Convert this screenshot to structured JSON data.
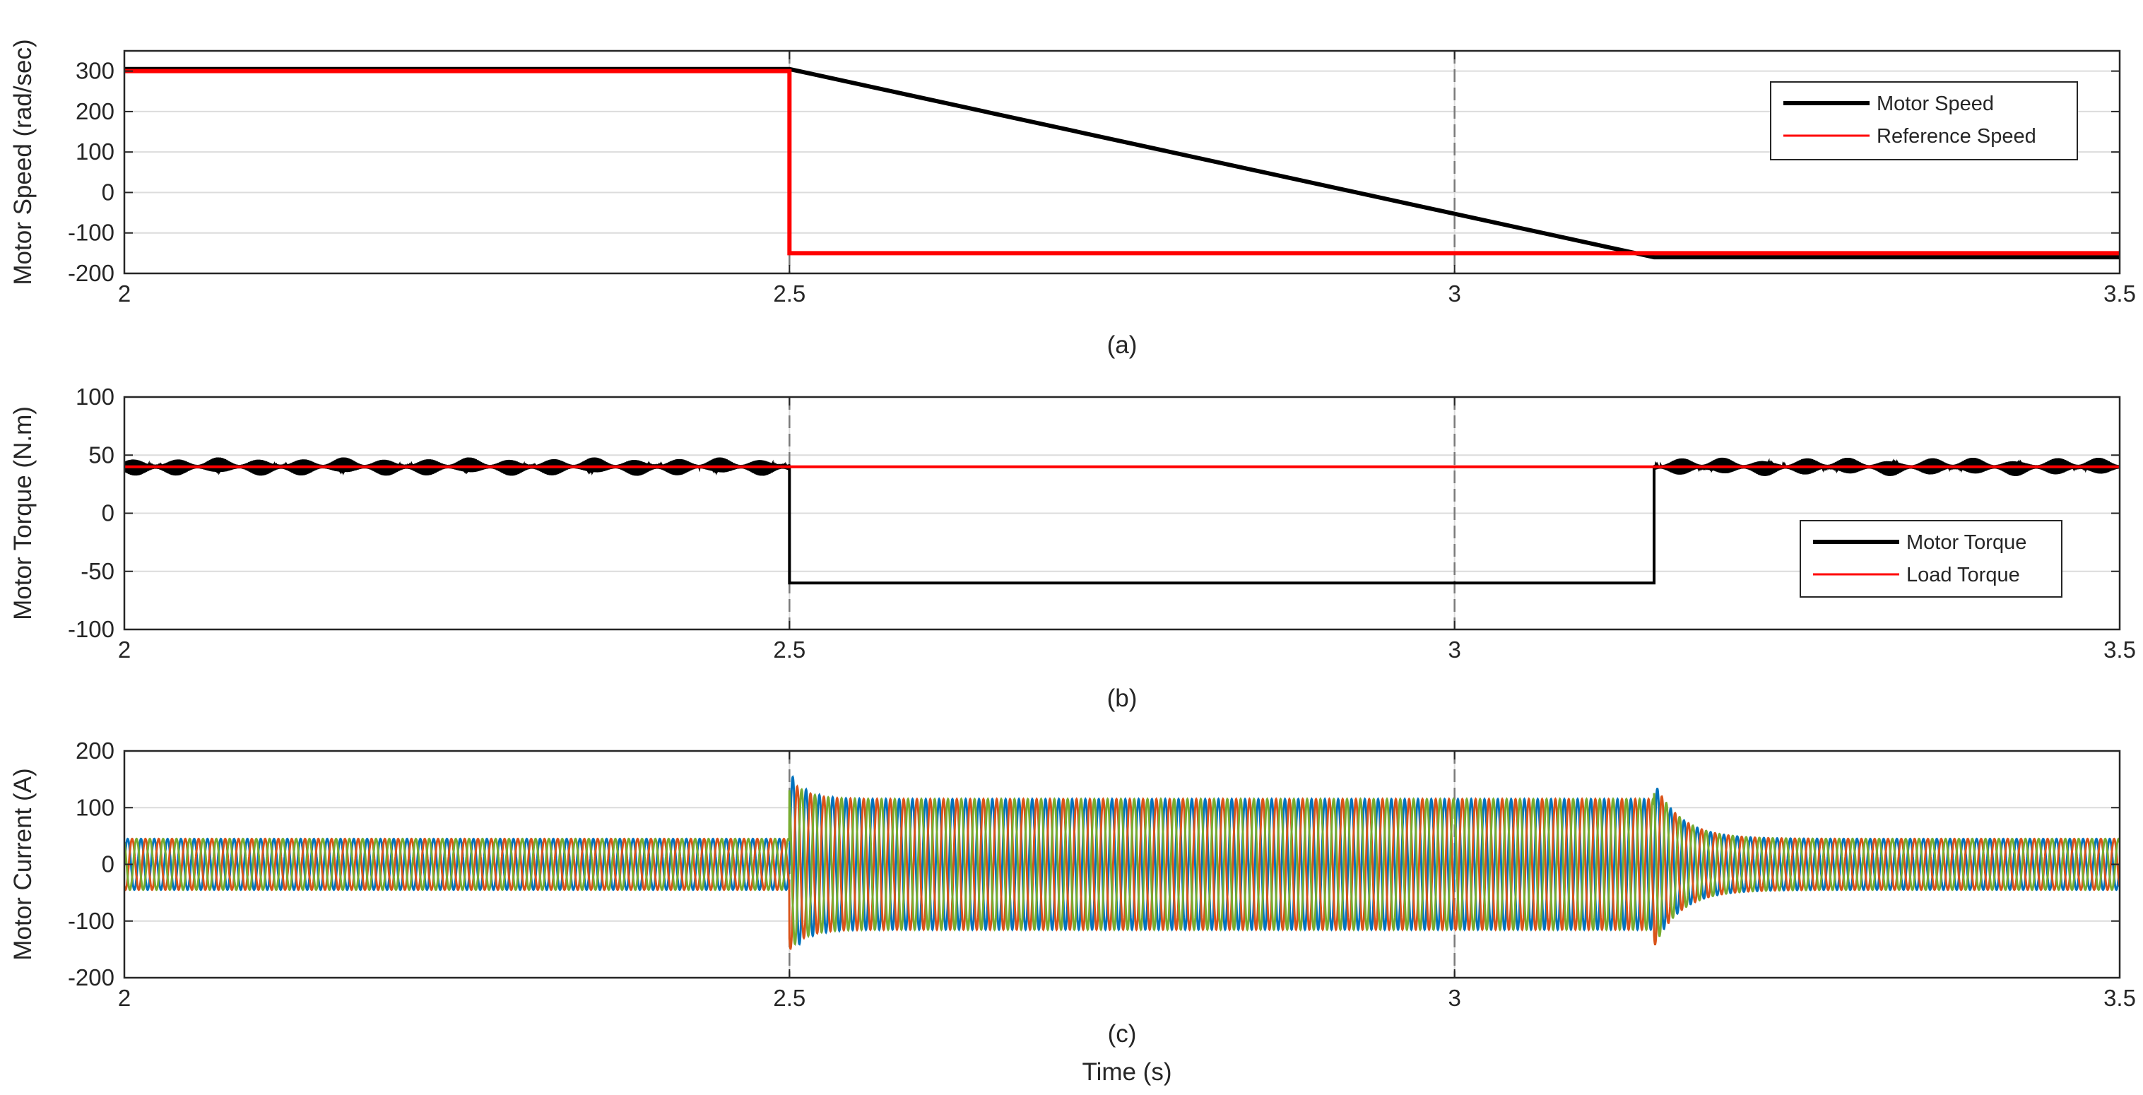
{
  "figure": {
    "xlabel": "Time (s)"
  },
  "chart_data": [
    {
      "type": "line",
      "caption": "(a)",
      "xlabel": "",
      "ylabel": "Motor Speed (rad/sec)",
      "xlim": [
        2,
        3.5
      ],
      "ylim": [
        -200,
        350
      ],
      "xticks": [
        2,
        2.5,
        3,
        3.5
      ],
      "xtick_labels": [
        "2",
        "2.5",
        "3",
        "3.5"
      ],
      "yticks": [
        -200,
        -100,
        0,
        100,
        200,
        300
      ],
      "ytick_labels": [
        "-200",
        "-100",
        "0",
        "100",
        "200",
        "300"
      ],
      "grid": true,
      "legend_position": "top-right",
      "series": [
        {
          "name": "Motor Speed",
          "color": "#000000",
          "x": [
            2,
            2.5,
            3.15,
            3.5
          ],
          "y": [
            305,
            305,
            -160,
            -160
          ]
        },
        {
          "name": "Reference Speed",
          "color": "#ff0000",
          "x": [
            2,
            2.5,
            2.5,
            3.5
          ],
          "y": [
            300,
            300,
            -150,
            -150
          ]
        }
      ]
    },
    {
      "type": "line",
      "caption": "(b)",
      "xlabel": "",
      "ylabel": "Motor Torque (N.m)",
      "xlim": [
        2,
        3.5
      ],
      "ylim": [
        -100,
        100
      ],
      "xticks": [
        2,
        2.5,
        3,
        3.5
      ],
      "xtick_labels": [
        "2",
        "2.5",
        "3",
        "3.5"
      ],
      "yticks": [
        -100,
        -50,
        0,
        50,
        100
      ],
      "ytick_labels": [
        "-100",
        "-50",
        "0",
        "50",
        "100"
      ],
      "grid": true,
      "legend_position": "right",
      "series": [
        {
          "name": "Motor Torque",
          "color": "#000000",
          "x": [
            2,
            2.5,
            2.5,
            3.15,
            3.15,
            3.5
          ],
          "y": [
            40,
            40,
            -60,
            -60,
            40,
            40
          ],
          "ripple": [
            {
              "from": 2,
              "to": 2.5,
              "amplitude": 8
            },
            {
              "from": 3.15,
              "to": 3.5,
              "amplitude": 8
            }
          ]
        },
        {
          "name": "Load Torque",
          "color": "#ff0000",
          "x": [
            2,
            3.5
          ],
          "y": [
            40,
            40
          ]
        }
      ]
    },
    {
      "type": "line",
      "caption": "(c)",
      "xlabel": "Time (s)",
      "ylabel": "Motor Current (A)",
      "xlim": [
        2,
        3.5
      ],
      "ylim": [
        -200,
        200
      ],
      "xticks": [
        2,
        2.5,
        3,
        3.5
      ],
      "xtick_labels": [
        "2",
        "2.5",
        "3",
        "3.5"
      ],
      "yticks": [
        -200,
        -100,
        0,
        100,
        200
      ],
      "ytick_labels": [
        "-200",
        "-100",
        "0",
        "100",
        "200"
      ],
      "grid": true,
      "three_phase": {
        "amplitude_light_load": 45,
        "amplitude_high_load": 115,
        "cycles_before_2_5s": 50,
        "cycles_2_5s_to_3_15s": 65,
        "cycles_after_3_15s": 35,
        "load_steps": [
          2.5,
          3.15
        ]
      },
      "series": [
        {
          "color": "#0072bd"
        },
        {
          "color": "#d95319"
        },
        {
          "color": "#77ac30"
        }
      ]
    }
  ]
}
